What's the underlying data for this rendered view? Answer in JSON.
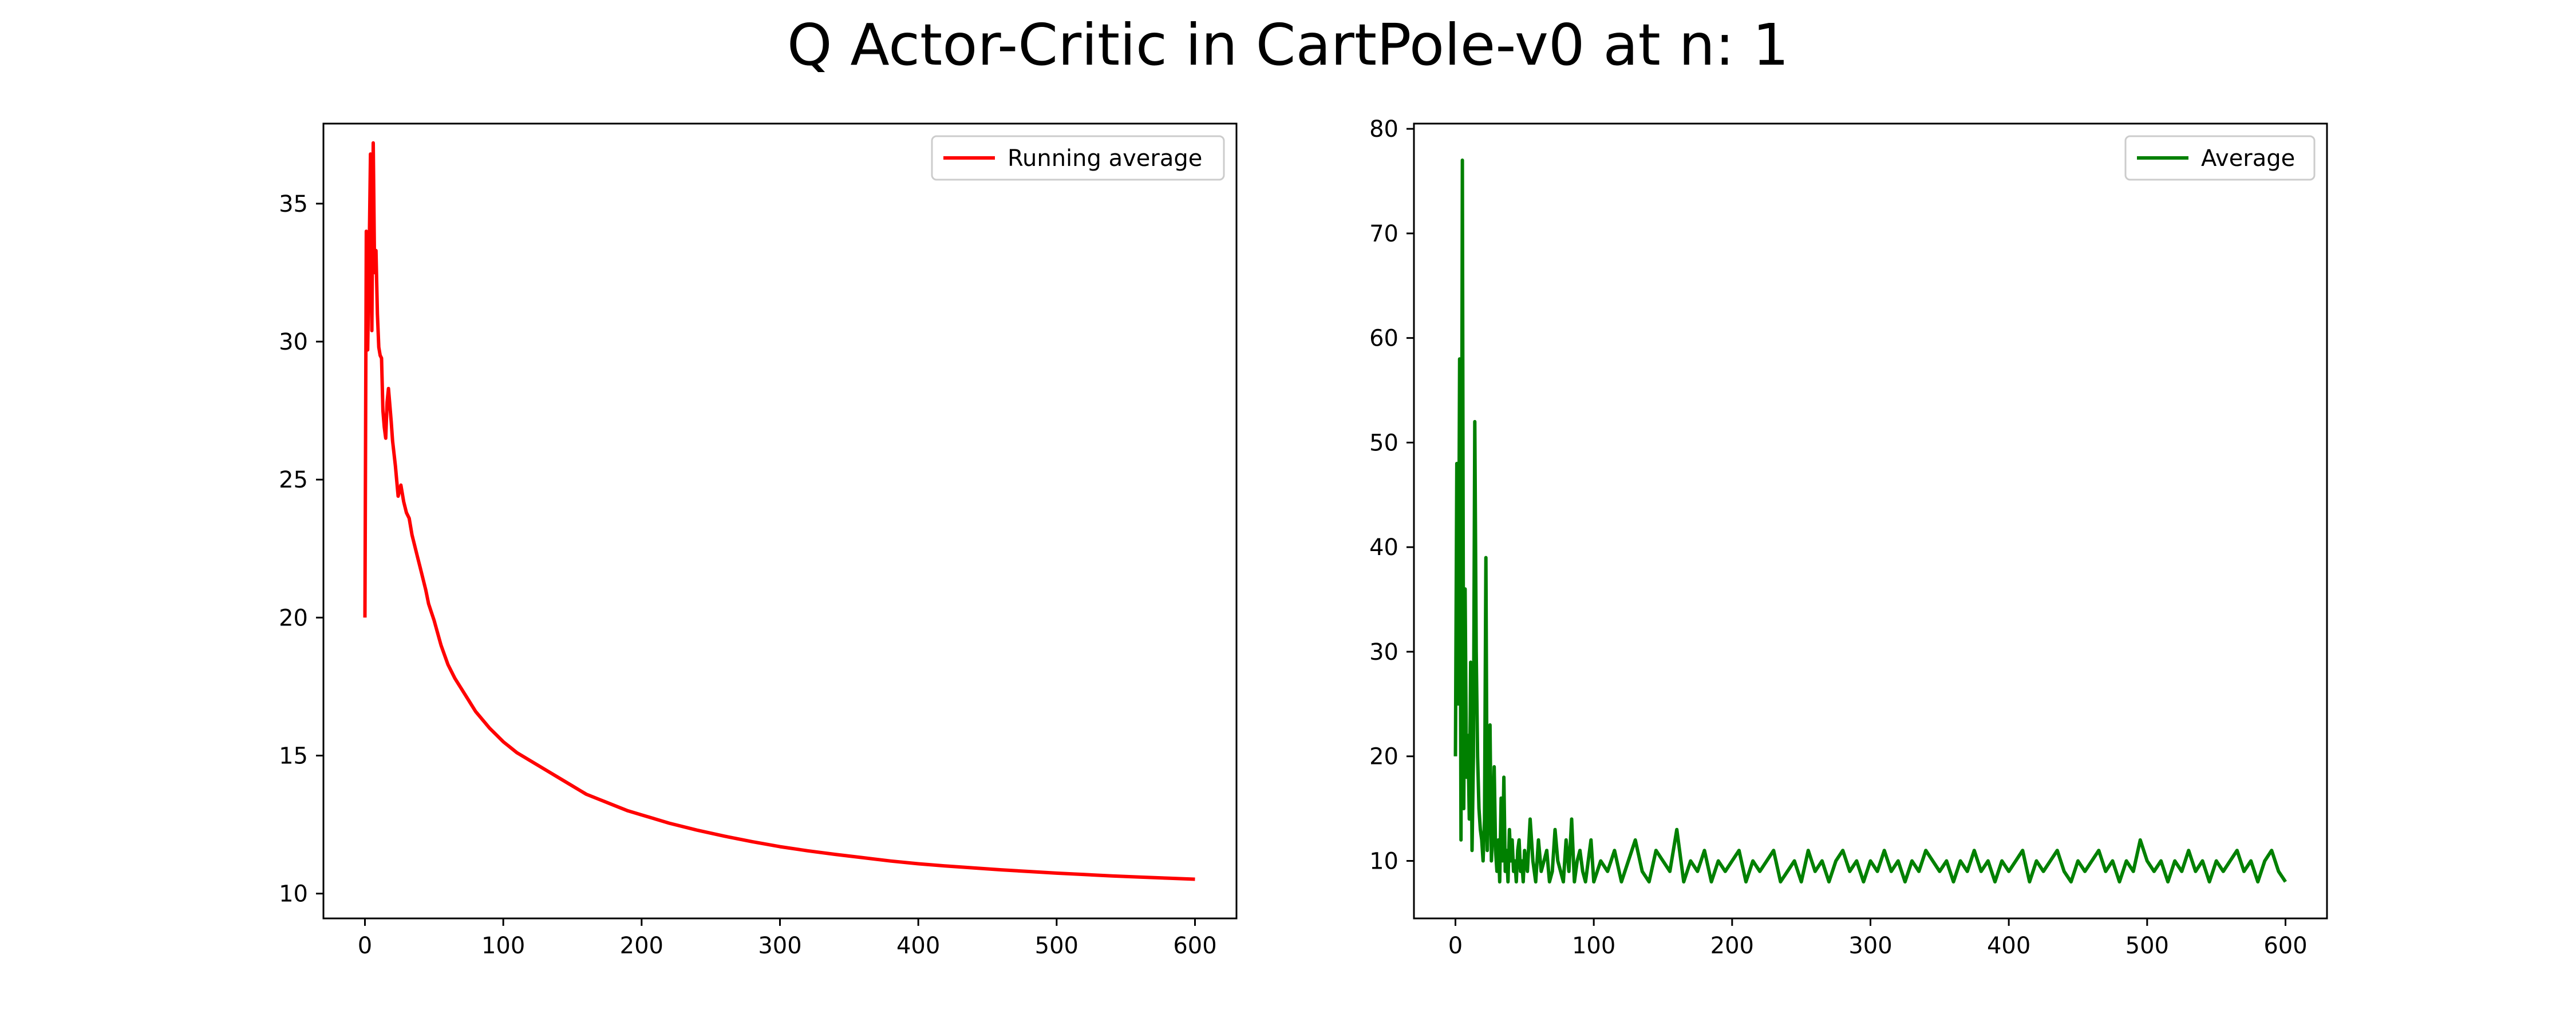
{
  "figure": {
    "title": "Q Actor-Critic in CartPole-v0 at n: 1"
  },
  "chart_data": [
    {
      "type": "line",
      "title": "",
      "xlabel": "",
      "ylabel": "",
      "xlim": [
        -30,
        630
      ],
      "ylim": [
        9.1,
        37.9
      ],
      "xticks": [
        0,
        100,
        200,
        300,
        400,
        500,
        600
      ],
      "yticks": [
        10,
        15,
        20,
        25,
        30,
        35
      ],
      "grid": false,
      "legend_position": "top-right",
      "series": [
        {
          "name": "Running average",
          "color": "#ff0000",
          "x": [
            0,
            1,
            2,
            3,
            4,
            5,
            6,
            7,
            8,
            9,
            10,
            11,
            12,
            13,
            14,
            15,
            16,
            17,
            18,
            19,
            20,
            22,
            24,
            26,
            28,
            30,
            32,
            34,
            36,
            38,
            40,
            42,
            44,
            46,
            48,
            50,
            55,
            60,
            65,
            70,
            75,
            80,
            90,
            100,
            110,
            120,
            130,
            140,
            150,
            160,
            170,
            180,
            190,
            200,
            220,
            240,
            260,
            280,
            300,
            320,
            340,
            360,
            380,
            400,
            420,
            440,
            460,
            480,
            500,
            520,
            540,
            560,
            580,
            600
          ],
          "y": [
            20.0,
            34.0,
            29.7,
            33.0,
            36.8,
            30.4,
            37.2,
            32.5,
            33.3,
            31.0,
            29.8,
            29.5,
            29.4,
            27.5,
            26.9,
            26.5,
            27.8,
            28.3,
            27.7,
            27.1,
            26.4,
            25.5,
            24.4,
            24.8,
            24.2,
            23.8,
            23.6,
            23.0,
            22.6,
            22.2,
            21.8,
            21.4,
            21.0,
            20.5,
            20.2,
            19.9,
            19.0,
            18.3,
            17.8,
            17.4,
            17.0,
            16.6,
            16.0,
            15.5,
            15.1,
            14.8,
            14.5,
            14.2,
            13.9,
            13.6,
            13.4,
            13.2,
            13.0,
            12.85,
            12.55,
            12.3,
            12.08,
            11.88,
            11.7,
            11.55,
            11.42,
            11.3,
            11.18,
            11.08,
            11.0,
            10.93,
            10.86,
            10.8,
            10.74,
            10.69,
            10.64,
            10.6,
            10.56,
            10.52
          ]
        }
      ]
    },
    {
      "type": "line",
      "title": "",
      "xlabel": "",
      "ylabel": "",
      "xlim": [
        -30,
        630
      ],
      "ylim": [
        4.5,
        80.5
      ],
      "xticks": [
        0,
        100,
        200,
        300,
        400,
        500,
        600
      ],
      "yticks": [
        10,
        20,
        30,
        40,
        50,
        60,
        70,
        80
      ],
      "grid": false,
      "legend_position": "top-right",
      "series": [
        {
          "name": "Average",
          "color": "#008000",
          "x": [
            0,
            1,
            2,
            3,
            4,
            5,
            6,
            7,
            8,
            9,
            10,
            11,
            12,
            13,
            14,
            15,
            16,
            17,
            18,
            19,
            20,
            21,
            22,
            23,
            24,
            25,
            26,
            27,
            28,
            29,
            30,
            31,
            32,
            33,
            34,
            35,
            36,
            37,
            38,
            39,
            40,
            41,
            42,
            43,
            44,
            45,
            46,
            47,
            48,
            49,
            50,
            52,
            54,
            56,
            58,
            60,
            62,
            64,
            66,
            68,
            70,
            72,
            74,
            76,
            78,
            80,
            82,
            84,
            86,
            88,
            90,
            92,
            94,
            96,
            98,
            100,
            105,
            110,
            115,
            120,
            125,
            130,
            135,
            140,
            145,
            150,
            155,
            160,
            165,
            170,
            175,
            180,
            185,
            190,
            195,
            200,
            205,
            210,
            215,
            220,
            225,
            230,
            235,
            240,
            245,
            250,
            255,
            260,
            265,
            270,
            275,
            280,
            285,
            290,
            295,
            300,
            305,
            310,
            315,
            320,
            325,
            330,
            335,
            340,
            345,
            350,
            355,
            360,
            365,
            370,
            375,
            380,
            385,
            390,
            395,
            400,
            405,
            410,
            415,
            420,
            425,
            430,
            435,
            440,
            445,
            450,
            455,
            460,
            465,
            470,
            475,
            480,
            485,
            490,
            495,
            500,
            505,
            510,
            515,
            520,
            525,
            530,
            535,
            540,
            545,
            550,
            555,
            560,
            565,
            570,
            575,
            580,
            585,
            590,
            595,
            600
          ],
          "y": [
            20,
            48,
            25,
            58,
            12,
            77,
            15,
            36,
            18,
            22,
            14,
            29,
            11,
            20,
            52,
            30,
            20,
            15,
            13,
            12,
            10,
            14,
            39,
            11,
            16,
            23,
            10,
            13,
            19,
            11,
            9,
            12,
            8,
            16,
            10,
            18,
            9,
            11,
            8,
            13,
            10,
            12,
            9,
            10,
            8,
            11,
            12,
            9,
            10,
            8,
            11,
            9,
            14,
            10,
            8,
            12,
            9,
            10,
            11,
            8,
            9,
            13,
            10,
            9,
            8,
            12,
            9,
            14,
            8,
            10,
            11,
            9,
            8,
            10,
            12,
            8,
            10,
            9,
            11,
            8,
            10,
            12,
            9,
            8,
            11,
            10,
            9,
            13,
            8,
            10,
            9,
            11,
            8,
            10,
            9,
            10,
            11,
            8,
            10,
            9,
            10,
            11,
            8,
            9,
            10,
            8,
            11,
            9,
            10,
            8,
            10,
            11,
            9,
            10,
            8,
            10,
            9,
            11,
            9,
            10,
            8,
            10,
            9,
            11,
            10,
            9,
            10,
            8,
            10,
            9,
            11,
            9,
            10,
            8,
            10,
            9,
            10,
            11,
            8,
            10,
            9,
            10,
            11,
            9,
            8,
            10,
            9,
            10,
            11,
            9,
            10,
            8,
            10,
            9,
            12,
            10,
            9,
            10,
            8,
            10,
            9,
            11,
            9,
            10,
            8,
            10,
            9,
            10,
            11,
            9,
            10,
            8,
            10,
            11,
            9,
            8
          ]
        }
      ]
    }
  ]
}
